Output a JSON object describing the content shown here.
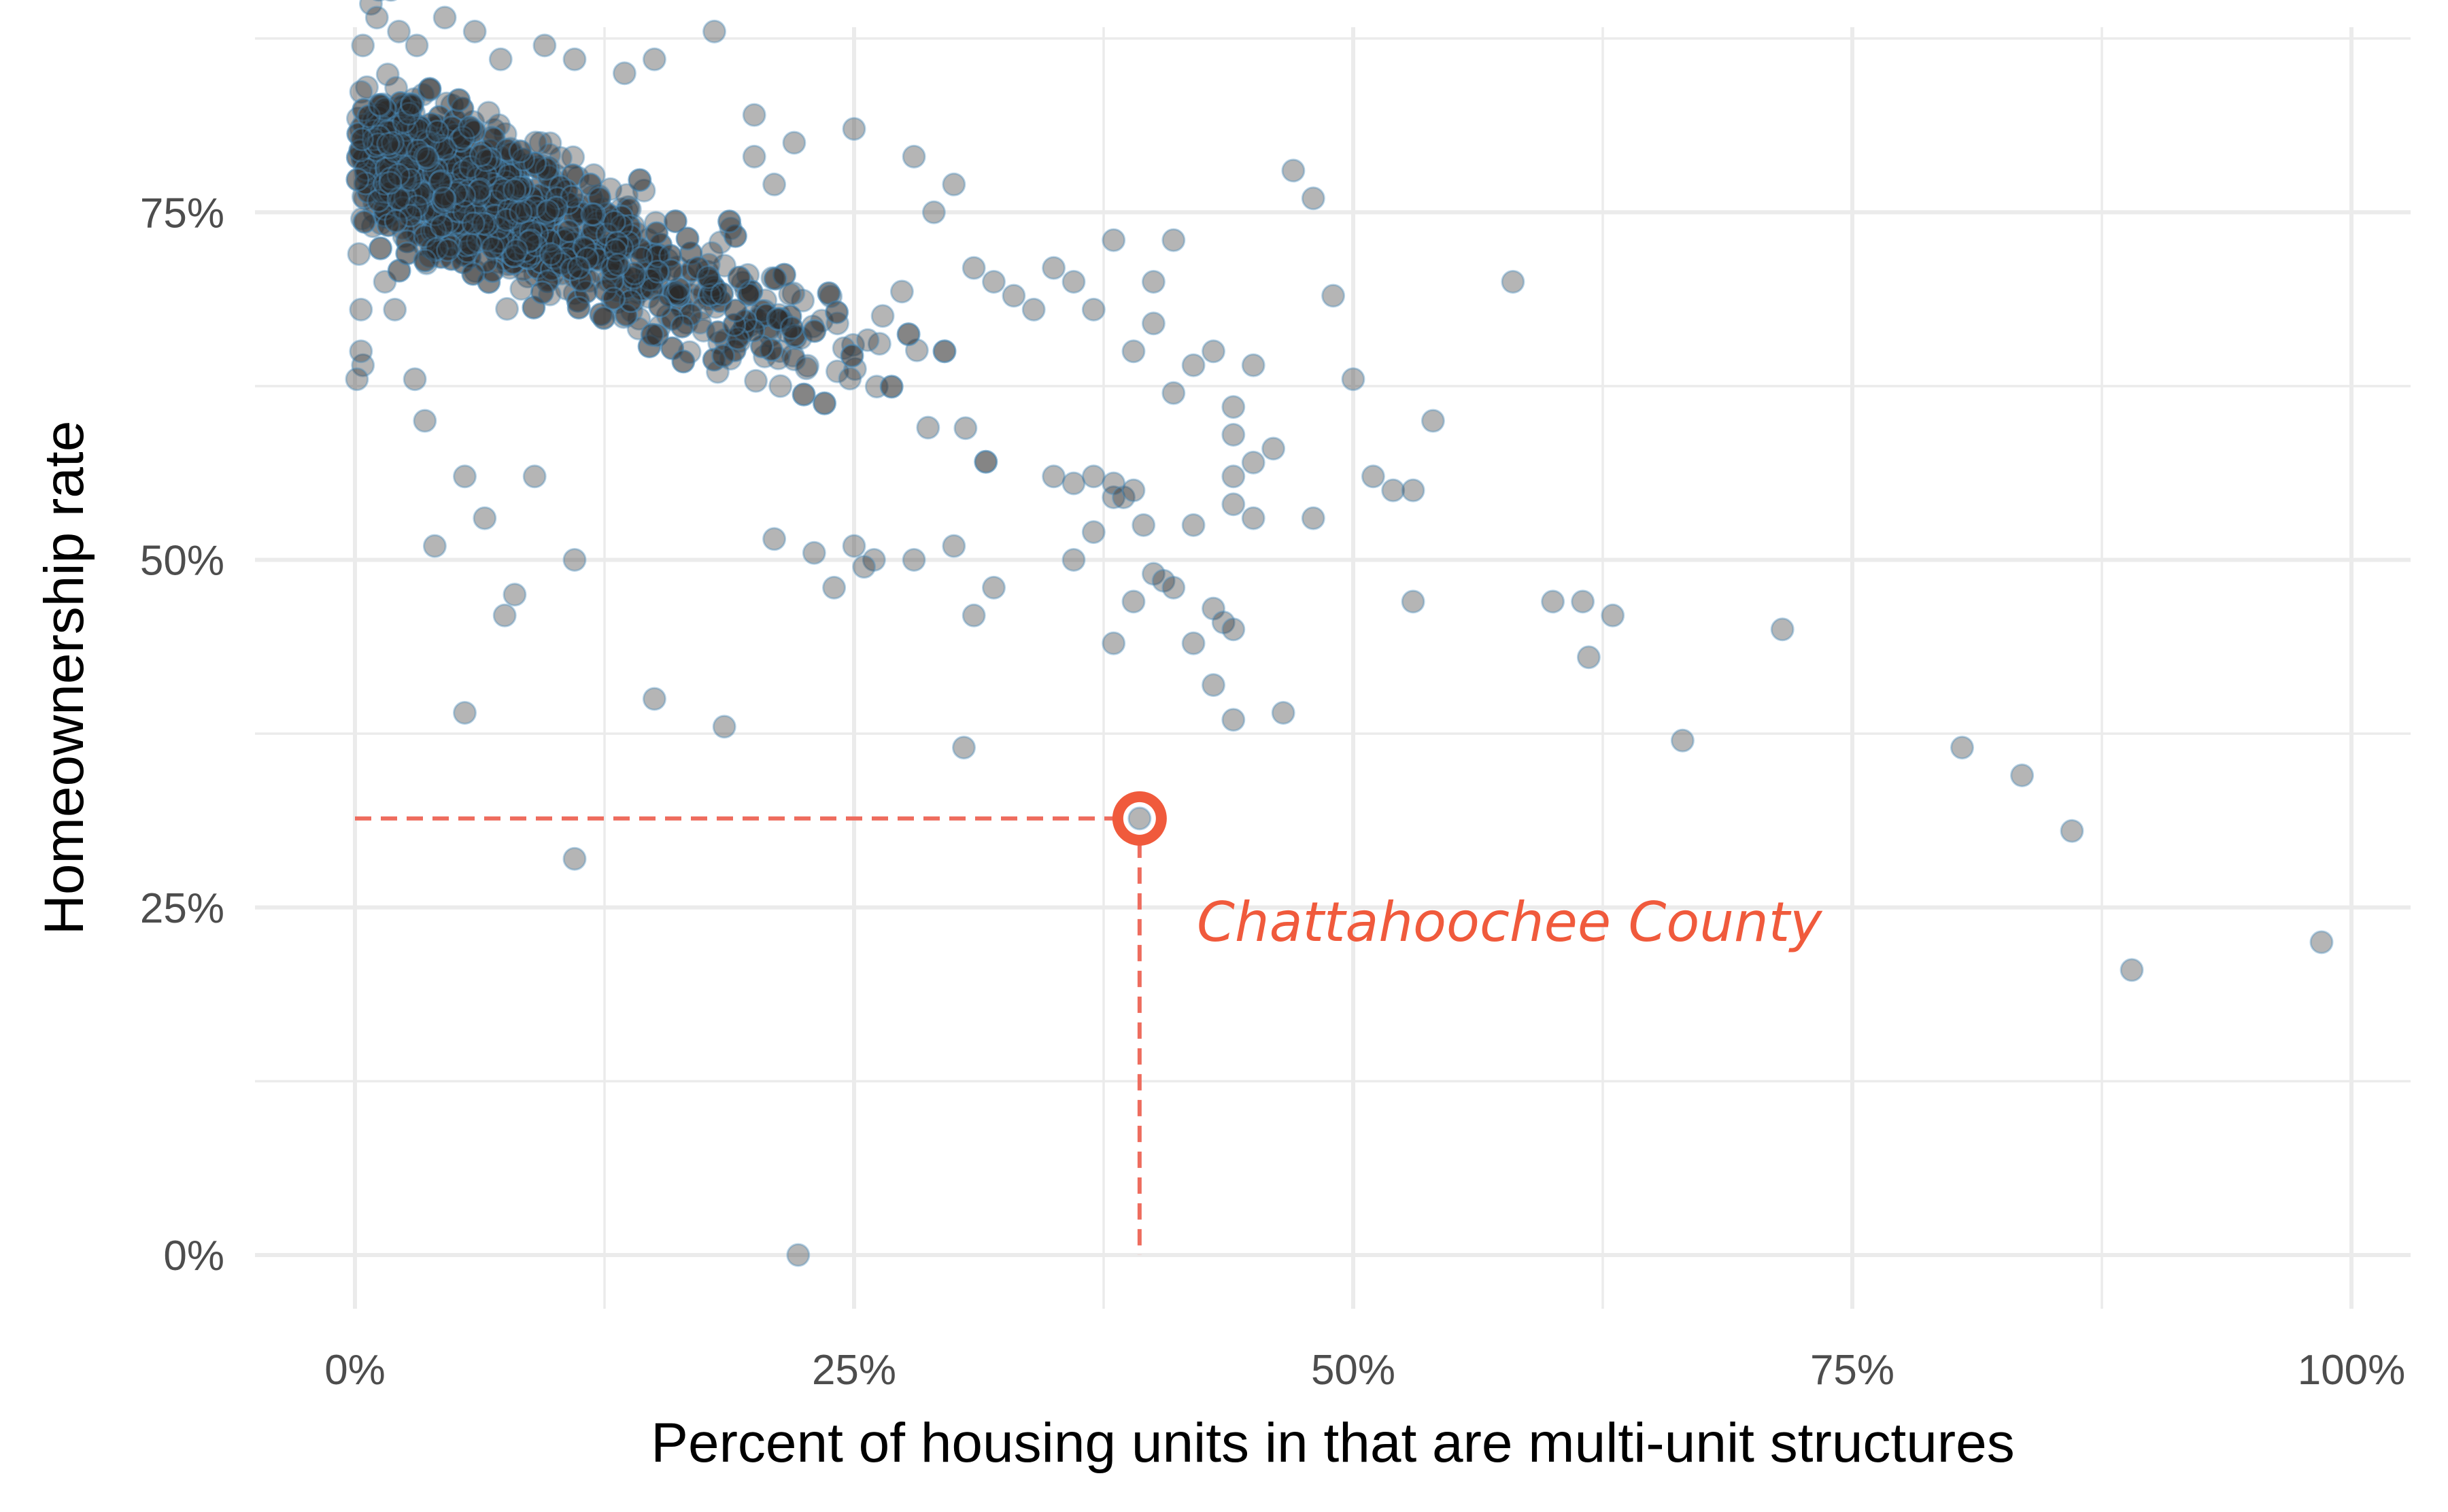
{
  "chart_data": {
    "type": "scatter",
    "title": "",
    "xlabel": "Percent of housing units in that are multi-unit structures",
    "ylabel": "Homeownership rate",
    "xlim": [
      0,
      1
    ],
    "ylim": [
      0,
      0.9
    ],
    "x_ticks": [
      "0%",
      "25%",
      "50%",
      "75%",
      "100%"
    ],
    "y_ticks": [
      "0%",
      "25%",
      "50%",
      "75%"
    ],
    "grid": true,
    "legend": "none",
    "colors": {
      "point_fill": "#2b2b2b",
      "point_stroke": "#4a8fbd",
      "highlight": "#f05a3c",
      "reference_line": "#ee6c5e",
      "grid": "#ebebeb"
    },
    "highlight": {
      "label": "Chattahoochee County",
      "x": 0.393,
      "y": 0.314
    },
    "cluster_note": "approximately 3,100 counties; dense cluster between x 0-0.35 and y 0.55-0.90 with a downward trend",
    "points": [
      [
        0.005,
        0.76
      ],
      [
        0.002,
        0.72
      ],
      [
        0.003,
        0.68
      ],
      [
        0.004,
        0.64
      ],
      [
        0.001,
        0.63
      ],
      [
        0.003,
        0.65
      ],
      [
        0.008,
        0.9
      ],
      [
        0.012,
        0.91
      ],
      [
        0.018,
        0.91
      ],
      [
        0.011,
        0.89
      ],
      [
        0.022,
        0.88
      ],
      [
        0.031,
        0.87
      ],
      [
        0.045,
        0.89
      ],
      [
        0.06,
        0.88
      ],
      [
        0.073,
        0.86
      ],
      [
        0.095,
        0.87
      ],
      [
        0.11,
        0.86
      ],
      [
        0.135,
        0.85
      ],
      [
        0.15,
        0.86
      ],
      [
        0.18,
        0.88
      ],
      [
        0.004,
        0.87
      ],
      [
        0.006,
        0.84
      ],
      [
        0.003,
        0.81
      ],
      [
        0.01,
        0.82
      ],
      [
        0.008,
        0.79
      ],
      [
        0.012,
        0.77
      ],
      [
        0.009,
        0.74
      ],
      [
        0.015,
        0.7
      ],
      [
        0.02,
        0.68
      ],
      [
        0.03,
        0.63
      ],
      [
        0.2,
        0.82
      ],
      [
        0.2,
        0.79
      ],
      [
        0.21,
        0.77
      ],
      [
        0.22,
        0.8
      ],
      [
        0.25,
        0.81
      ],
      [
        0.28,
        0.79
      ],
      [
        0.29,
        0.75
      ],
      [
        0.3,
        0.77
      ],
      [
        0.31,
        0.71
      ],
      [
        0.32,
        0.7
      ],
      [
        0.33,
        0.69
      ],
      [
        0.34,
        0.68
      ],
      [
        0.35,
        0.71
      ],
      [
        0.36,
        0.7
      ],
      [
        0.37,
        0.68
      ],
      [
        0.38,
        0.73
      ],
      [
        0.4,
        0.7
      ],
      [
        0.41,
        0.73
      ],
      [
        0.4,
        0.67
      ],
      [
        0.39,
        0.65
      ],
      [
        0.42,
        0.64
      ],
      [
        0.43,
        0.65
      ],
      [
        0.41,
        0.62
      ],
      [
        0.44,
        0.61
      ],
      [
        0.45,
        0.64
      ],
      [
        0.44,
        0.59
      ],
      [
        0.46,
        0.58
      ],
      [
        0.45,
        0.57
      ],
      [
        0.44,
        0.56
      ],
      [
        0.44,
        0.54
      ],
      [
        0.45,
        0.53
      ],
      [
        0.48,
        0.53
      ],
      [
        0.47,
        0.78
      ],
      [
        0.48,
        0.76
      ],
      [
        0.49,
        0.69
      ],
      [
        0.5,
        0.63
      ],
      [
        0.51,
        0.56
      ],
      [
        0.52,
        0.55
      ],
      [
        0.53,
        0.55
      ],
      [
        0.54,
        0.6
      ],
      [
        0.58,
        0.7
      ],
      [
        0.53,
        0.47
      ],
      [
        0.6,
        0.47
      ],
      [
        0.615,
        0.47
      ],
      [
        0.63,
        0.46
      ],
      [
        0.618,
        0.43
      ],
      [
        0.665,
        0.37
      ],
      [
        0.715,
        0.45
      ],
      [
        0.805,
        0.365
      ],
      [
        0.835,
        0.345
      ],
      [
        0.86,
        0.305
      ],
      [
        0.89,
        0.205
      ],
      [
        0.985,
        0.225
      ],
      [
        0.222,
        0.0
      ],
      [
        0.11,
        0.285
      ],
      [
        0.305,
        0.365
      ],
      [
        0.055,
        0.39
      ],
      [
        0.15,
        0.4
      ],
      [
        0.185,
        0.38
      ],
      [
        0.075,
        0.46
      ],
      [
        0.08,
        0.475
      ],
      [
        0.055,
        0.56
      ],
      [
        0.04,
        0.51
      ],
      [
        0.11,
        0.5
      ],
      [
        0.09,
        0.56
      ],
      [
        0.065,
        0.53
      ],
      [
        0.035,
        0.6
      ],
      [
        0.38,
        0.44
      ],
      [
        0.39,
        0.47
      ],
      [
        0.42,
        0.44
      ],
      [
        0.43,
        0.41
      ],
      [
        0.44,
        0.385
      ],
      [
        0.465,
        0.39
      ],
      [
        0.4,
        0.49
      ],
      [
        0.405,
        0.485
      ],
      [
        0.41,
        0.48
      ],
      [
        0.395,
        0.525
      ],
      [
        0.38,
        0.545
      ],
      [
        0.37,
        0.52
      ],
      [
        0.36,
        0.5
      ],
      [
        0.32,
        0.48
      ],
      [
        0.31,
        0.46
      ],
      [
        0.3,
        0.51
      ],
      [
        0.28,
        0.5
      ],
      [
        0.26,
        0.5
      ],
      [
        0.24,
        0.48
      ],
      [
        0.25,
        0.51
      ],
      [
        0.23,
        0.505
      ],
      [
        0.21,
        0.515
      ],
      [
        0.255,
        0.495
      ],
      [
        0.43,
        0.465
      ],
      [
        0.435,
        0.455
      ],
      [
        0.44,
        0.45
      ],
      [
        0.42,
        0.525
      ],
      [
        0.38,
        0.555
      ],
      [
        0.385,
        0.545
      ],
      [
        0.39,
        0.55
      ],
      [
        0.37,
        0.56
      ],
      [
        0.36,
        0.555
      ],
      [
        0.35,
        0.56
      ]
    ]
  }
}
